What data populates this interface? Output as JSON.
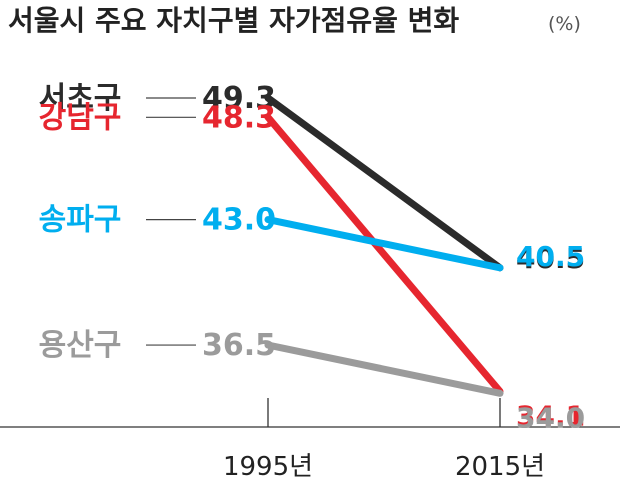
{
  "chart_data": {
    "type": "line",
    "title": "서울시 주요 자치구별 자가점유율 변화",
    "unit": "(%)",
    "x": [
      "1995년",
      "2015년"
    ],
    "series": [
      {
        "name": "서초구",
        "color": "#2b2b2b",
        "values": [
          49.3,
          40.5
        ],
        "labels": [
          "49.3",
          "40.5"
        ]
      },
      {
        "name": "강남구",
        "color": "#e6262f",
        "values": [
          48.3,
          34.1
        ],
        "labels": [
          "48.3",
          "34.1"
        ]
      },
      {
        "name": "송파구",
        "color": "#00aeef",
        "values": [
          43.0,
          40.5
        ],
        "labels": [
          "43.0",
          "40.5"
        ]
      },
      {
        "name": "용산구",
        "color": "#9b9b9b",
        "values": [
          36.5,
          34.0
        ],
        "labels": [
          "36.5",
          "34.0"
        ]
      }
    ],
    "grid": false,
    "legend": "left"
  }
}
